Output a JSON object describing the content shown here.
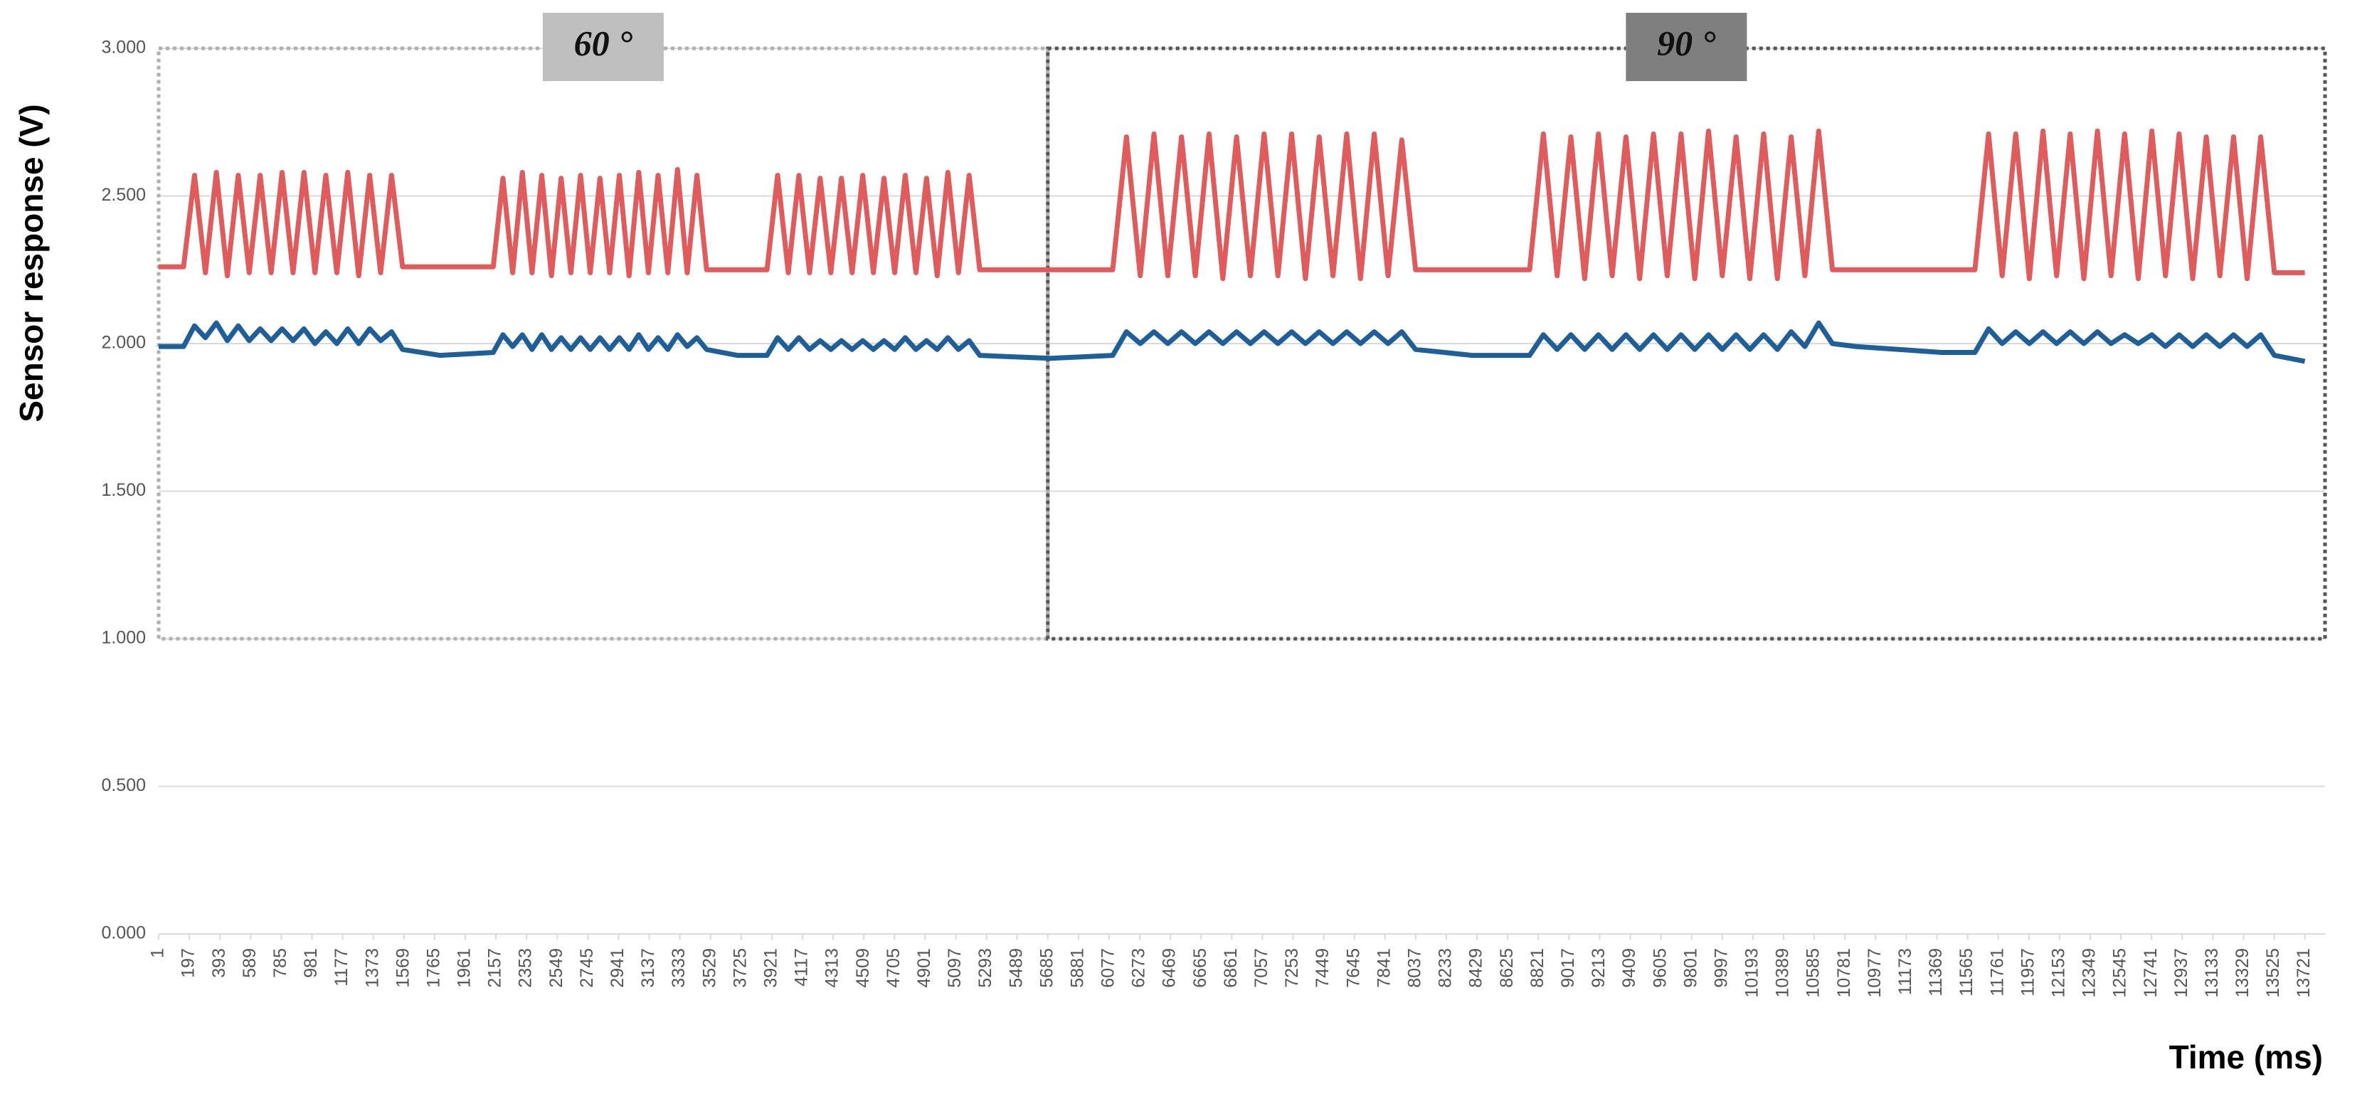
{
  "chart_data": {
    "type": "line",
    "y_label": "Sensor response (V)",
    "x_label": "Time (ms)",
    "xlim": [
      1,
      13850
    ],
    "ylim": [
      0,
      3
    ],
    "yticks": [
      {
        "value": 0,
        "label": "0.000"
      },
      {
        "value": 0.5,
        "label": "0.500"
      },
      {
        "value": 1,
        "label": "1.000"
      },
      {
        "value": 1.5,
        "label": "1.500"
      },
      {
        "value": 2,
        "label": "2.000"
      },
      {
        "value": 2.5,
        "label": "2.500"
      },
      {
        "value": 3,
        "label": "3.000"
      }
    ],
    "xticks": [
      1,
      197,
      393,
      589,
      785,
      981,
      1177,
      1373,
      1569,
      1765,
      1961,
      2157,
      2353,
      2549,
      2745,
      2941,
      3137,
      3333,
      3529,
      3725,
      3921,
      4117,
      4313,
      4509,
      4705,
      4901,
      5097,
      5293,
      5489,
      5685,
      5881,
      6077,
      6273,
      6469,
      6665,
      6861,
      7057,
      7253,
      7449,
      7645,
      7841,
      8037,
      8233,
      8429,
      8625,
      8821,
      9017,
      9213,
      9409,
      9605,
      9801,
      9997,
      10193,
      10389,
      10585,
      10781,
      10977,
      11173,
      11369,
      11565,
      11761,
      11957,
      12153,
      12349,
      12545,
      12741,
      12937,
      13133,
      13329,
      13525,
      13721
    ],
    "grid": true,
    "regions": [
      {
        "label": "60 °",
        "x": [
          1,
          5685
        ],
        "y": [
          1,
          3
        ],
        "fill": "#bfbfbf",
        "border": "#b0b0b0"
      },
      {
        "label": "90 °",
        "x": [
          5685,
          13850
        ],
        "y": [
          1,
          3
        ],
        "fill": "#7f7f7f",
        "border": "#555555"
      }
    ],
    "x": [
      1,
      160,
      230,
      300,
      370,
      440,
      510,
      580,
      650,
      720,
      790,
      860,
      930,
      1000,
      1070,
      1140,
      1210,
      1280,
      1350,
      1420,
      1490,
      1560,
      1800,
      2140,
      2202,
      2264,
      2326,
      2388,
      2450,
      2512,
      2574,
      2636,
      2698,
      2760,
      2822,
      2884,
      2946,
      3008,
      3070,
      3132,
      3194,
      3256,
      3318,
      3380,
      3442,
      3504,
      3700,
      3890,
      3958,
      4026,
      4094,
      4162,
      4230,
      4298,
      4366,
      4434,
      4502,
      4570,
      4638,
      4706,
      4774,
      4842,
      4910,
      4978,
      5046,
      5114,
      5182,
      5250,
      5700,
      6100,
      6188,
      6276,
      6364,
      6452,
      6540,
      6628,
      6716,
      6804,
      6892,
      6980,
      7068,
      7156,
      7244,
      7332,
      7420,
      7508,
      7596,
      7684,
      7772,
      7860,
      7948,
      8036,
      8400,
      8765,
      8853,
      8941,
      9029,
      9117,
      9205,
      9293,
      9381,
      9469,
      9557,
      9645,
      9733,
      9821,
      9909,
      9997,
      10085,
      10173,
      10261,
      10349,
      10437,
      10525,
      10613,
      10701,
      10850,
      11400,
      11612,
      11699,
      11786,
      11873,
      11960,
      12047,
      12134,
      12221,
      12308,
      12395,
      12482,
      12569,
      12656,
      12743,
      12830,
      12917,
      13004,
      13091,
      13178,
      13265,
      13352,
      13439,
      13526,
      13721
    ],
    "series": [
      {
        "color": "#e05b5b",
        "values": [
          2.26,
          2.26,
          2.57,
          2.24,
          2.58,
          2.23,
          2.57,
          2.24,
          2.57,
          2.24,
          2.58,
          2.24,
          2.58,
          2.24,
          2.57,
          2.24,
          2.58,
          2.23,
          2.57,
          2.24,
          2.57,
          2.26,
          2.26,
          2.26,
          2.56,
          2.24,
          2.58,
          2.24,
          2.57,
          2.23,
          2.56,
          2.24,
          2.57,
          2.24,
          2.56,
          2.24,
          2.57,
          2.23,
          2.58,
          2.24,
          2.57,
          2.24,
          2.59,
          2.24,
          2.57,
          2.25,
          2.25,
          2.25,
          2.57,
          2.24,
          2.57,
          2.24,
          2.56,
          2.24,
          2.56,
          2.24,
          2.57,
          2.24,
          2.56,
          2.24,
          2.57,
          2.24,
          2.56,
          2.23,
          2.58,
          2.24,
          2.57,
          2.25,
          2.25,
          2.25,
          2.7,
          2.23,
          2.71,
          2.23,
          2.7,
          2.23,
          2.71,
          2.22,
          2.7,
          2.23,
          2.71,
          2.23,
          2.71,
          2.22,
          2.7,
          2.23,
          2.71,
          2.22,
          2.71,
          2.23,
          2.69,
          2.25,
          2.25,
          2.25,
          2.71,
          2.23,
          2.7,
          2.22,
          2.71,
          2.23,
          2.7,
          2.22,
          2.71,
          2.23,
          2.71,
          2.22,
          2.72,
          2.23,
          2.7,
          2.22,
          2.71,
          2.22,
          2.7,
          2.23,
          2.72,
          2.25,
          2.25,
          2.25,
          2.25,
          2.71,
          2.23,
          2.71,
          2.22,
          2.72,
          2.23,
          2.71,
          2.22,
          2.72,
          2.23,
          2.71,
          2.22,
          2.72,
          2.23,
          2.71,
          2.22,
          2.7,
          2.23,
          2.7,
          2.22,
          2.7,
          2.24,
          2.24
        ]
      },
      {
        "color": "#1f5f99",
        "values": [
          1.99,
          1.99,
          2.06,
          2.02,
          2.07,
          2.01,
          2.06,
          2.01,
          2.05,
          2.01,
          2.05,
          2.01,
          2.05,
          2.0,
          2.04,
          2.0,
          2.05,
          2.0,
          2.05,
          2.01,
          2.04,
          1.98,
          1.96,
          1.97,
          2.03,
          1.99,
          2.03,
          1.98,
          2.03,
          1.98,
          2.02,
          1.98,
          2.02,
          1.98,
          2.02,
          1.98,
          2.02,
          1.98,
          2.03,
          1.98,
          2.02,
          1.98,
          2.03,
          1.99,
          2.02,
          1.98,
          1.96,
          1.96,
          2.02,
          1.98,
          2.02,
          1.98,
          2.01,
          1.98,
          2.01,
          1.98,
          2.01,
          1.98,
          2.01,
          1.98,
          2.02,
          1.98,
          2.01,
          1.98,
          2.02,
          1.98,
          2.01,
          1.96,
          1.95,
          1.96,
          2.04,
          2.0,
          2.04,
          2.0,
          2.04,
          2.0,
          2.04,
          2.0,
          2.04,
          2.0,
          2.04,
          2.0,
          2.04,
          2.0,
          2.04,
          2.0,
          2.04,
          2.0,
          2.04,
          2.0,
          2.04,
          1.98,
          1.96,
          1.96,
          2.03,
          1.98,
          2.03,
          1.98,
          2.03,
          1.98,
          2.03,
          1.98,
          2.03,
          1.98,
          2.03,
          1.98,
          2.03,
          1.98,
          2.03,
          1.98,
          2.03,
          1.98,
          2.04,
          1.99,
          2.07,
          2.0,
          1.99,
          1.97,
          1.97,
          2.05,
          2.0,
          2.04,
          2.0,
          2.04,
          2.0,
          2.04,
          2.0,
          2.04,
          2.0,
          2.03,
          2.0,
          2.03,
          1.99,
          2.03,
          1.99,
          2.03,
          1.99,
          2.03,
          1.99,
          2.03,
          1.96,
          1.94
        ]
      }
    ]
  }
}
